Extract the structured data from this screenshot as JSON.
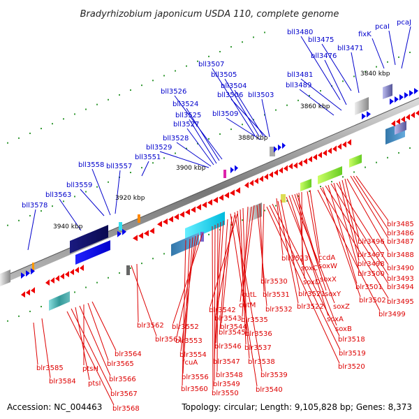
{
  "title": "Bradyrhizobium japonicum USDA 110, complete genome",
  "accession": "Accession: NC_004463",
  "topology": "Topology: circular; Length: 9,105,828 bp; Genes: 8,373",
  "colors": {
    "forward": "#0000ee",
    "reverse": "#ee0000",
    "label_top": "#0000cc",
    "label_bottom": "#dd0000",
    "backbone": "#888888"
  },
  "kbp_labels": [
    "3840 kbp",
    "3860 kbp",
    "3880 kbp",
    "3900 kbp",
    "3920 kbp",
    "3940 kbp"
  ],
  "top_genes": [
    "bll3480",
    "bll3475",
    "fixK",
    "pcaI",
    "pcaJ",
    "bll3471",
    "bll3476",
    "bll3481",
    "bll3489",
    "bll3507",
    "bll3505",
    "bll3504",
    "bll3506",
    "bll3503",
    "bll3526",
    "bll3524",
    "bll3525",
    "bll3527",
    "bll3509",
    "bll3528",
    "bll3529",
    "bll3551",
    "bll3558",
    "bll3557",
    "bll3559",
    "bll3563",
    "bll3578"
  ],
  "bottom_genes": [
    "blr3485",
    "blr3486",
    "blr3487",
    "blr3488",
    "blr3496",
    "blr3497",
    "blr3498",
    "blr3490",
    "blr3500",
    "blr3493",
    "blr3501",
    "blr3494",
    "blr3502",
    "blr3495",
    "blr3499",
    "ccdA",
    "soxW",
    "soxC",
    "soxD",
    "soxX",
    "soxY",
    "soxZ",
    "soxA",
    "soxB",
    "blr3523",
    "blr3521",
    "blr3522",
    "blr3530",
    "blr3531",
    "blr3532",
    "cutL",
    "cutM",
    "blr3518",
    "blr3519",
    "blr3520",
    "blr3542",
    "blr3543",
    "blr3544",
    "blr3535",
    "blr3536",
    "blr3545",
    "blr3537",
    "blr3546",
    "blr3538",
    "blr3547",
    "blr3539",
    "blr3548",
    "blr3549",
    "blr3540",
    "blr3550",
    "blr3562",
    "blr3552",
    "blr3561",
    "blr3553",
    "blr3554",
    "fcuA",
    "blr3556",
    "blr3560",
    "blr3564",
    "blr3565",
    "ptsH",
    "blr3566",
    "ptsI",
    "blr3567",
    "blr3568",
    "blr3585",
    "blr3584"
  ]
}
